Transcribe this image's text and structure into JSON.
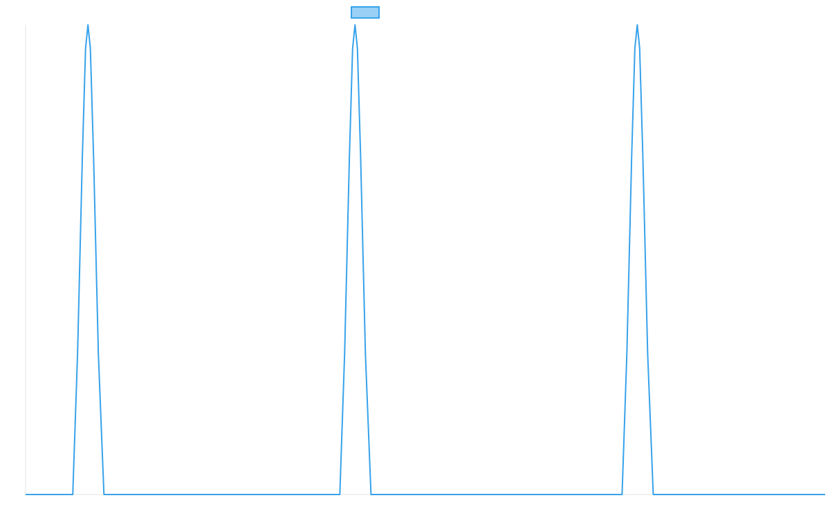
{
  "chart_data": {
    "type": "line",
    "x": [
      0,
      5.9,
      6.5,
      7.1,
      7.5,
      7.8,
      8.1,
      8.5,
      9.1,
      9.8,
      39.3,
      39.9,
      40.5,
      40.9,
      41.2,
      41.5,
      41.9,
      42.5,
      43.2,
      74.6,
      75.2,
      75.8,
      76.2,
      76.5,
      76.8,
      77.2,
      77.8,
      78.5,
      100
    ],
    "series": [
      {
        "color": "#36a2eb",
        "values": [
          0,
          0,
          0.3,
          0.72,
          0.95,
          1,
          0.95,
          0.72,
          0.3,
          0,
          0,
          0.3,
          0.72,
          0.95,
          1,
          0.95,
          0.72,
          0.3,
          0,
          0,
          0.3,
          0.72,
          0.95,
          1,
          0.95,
          0.72,
          0.3,
          0,
          0
        ]
      }
    ],
    "xlim": [
      0,
      100
    ],
    "ylim": [
      0,
      1
    ],
    "legend": "top"
  }
}
